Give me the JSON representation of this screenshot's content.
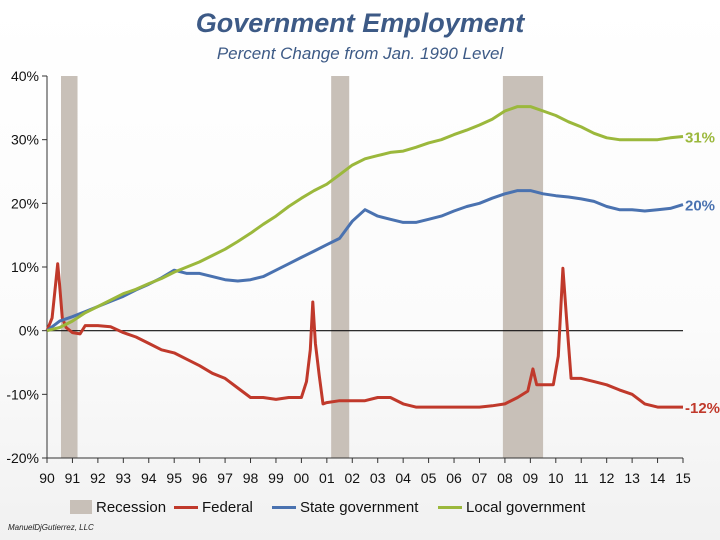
{
  "chart_data": {
    "type": "line",
    "title": "Government Employment",
    "subtitle": "Percent Change from Jan. 1990 Level",
    "xlabel": "",
    "ylabel": "",
    "x_ticks": [
      "90",
      "91",
      "92",
      "93",
      "94",
      "95",
      "96",
      "97",
      "98",
      "99",
      "00",
      "01",
      "02",
      "03",
      "04",
      "05",
      "06",
      "07",
      "08",
      "09",
      "10",
      "11",
      "12",
      "13",
      "14",
      "15"
    ],
    "xlim": [
      1990,
      2015
    ],
    "ylim": [
      -20,
      40
    ],
    "y_ticks": [
      "-20%",
      "-10%",
      "0%",
      "10%",
      "20%",
      "30%",
      "40%"
    ],
    "grid": false,
    "legend_position": "bottom",
    "recessions": [
      [
        1990.55,
        1991.2
      ],
      [
        2001.17,
        2001.88
      ],
      [
        2007.92,
        2009.5
      ]
    ],
    "series": [
      {
        "name": "Federal",
        "color": "#c0392b",
        "end_label": "-12%",
        "points": [
          [
            1990.0,
            0
          ],
          [
            1990.2,
            2
          ],
          [
            1990.33,
            7
          ],
          [
            1990.42,
            10.5
          ],
          [
            1990.5,
            7
          ],
          [
            1990.6,
            2
          ],
          [
            1990.75,
            0.5
          ],
          [
            1991.0,
            -0.3
          ],
          [
            1991.3,
            -0.5
          ],
          [
            1991.5,
            0.8
          ],
          [
            1992.0,
            0.8
          ],
          [
            1992.5,
            0.6
          ],
          [
            1993.0,
            -0.3
          ],
          [
            1993.5,
            -1
          ],
          [
            1994.0,
            -2
          ],
          [
            1994.5,
            -3
          ],
          [
            1995.0,
            -3.5
          ],
          [
            1995.5,
            -4.5
          ],
          [
            1996.0,
            -5.5
          ],
          [
            1996.5,
            -6.7
          ],
          [
            1997.0,
            -7.5
          ],
          [
            1997.5,
            -9
          ],
          [
            1998.0,
            -10.5
          ],
          [
            1998.5,
            -10.5
          ],
          [
            1999.0,
            -10.8
          ],
          [
            1999.5,
            -10.5
          ],
          [
            2000.0,
            -10.5
          ],
          [
            2000.2,
            -8
          ],
          [
            2000.35,
            -3
          ],
          [
            2000.45,
            4.5
          ],
          [
            2000.55,
            -2
          ],
          [
            2000.7,
            -7
          ],
          [
            2000.85,
            -11.5
          ],
          [
            2001.0,
            -11.3
          ],
          [
            2001.5,
            -11
          ],
          [
            2002.0,
            -11
          ],
          [
            2002.5,
            -11
          ],
          [
            2003.0,
            -10.5
          ],
          [
            2003.5,
            -10.5
          ],
          [
            2004.0,
            -11.5
          ],
          [
            2004.5,
            -12
          ],
          [
            2005.0,
            -12
          ],
          [
            2006.0,
            -12
          ],
          [
            2007.0,
            -12
          ],
          [
            2007.5,
            -11.8
          ],
          [
            2008.0,
            -11.5
          ],
          [
            2008.5,
            -10.5
          ],
          [
            2008.9,
            -9.5
          ],
          [
            2009.1,
            -6
          ],
          [
            2009.25,
            -8.5
          ],
          [
            2009.6,
            -8.5
          ],
          [
            2009.9,
            -8.5
          ],
          [
            2010.1,
            -4
          ],
          [
            2010.28,
            9.8
          ],
          [
            2010.42,
            2
          ],
          [
            2010.6,
            -7.5
          ],
          [
            2011.0,
            -7.5
          ],
          [
            2011.5,
            -8
          ],
          [
            2012.0,
            -8.5
          ],
          [
            2012.5,
            -9.3
          ],
          [
            2013.0,
            -10
          ],
          [
            2013.5,
            -11.5
          ],
          [
            2014.0,
            -12
          ],
          [
            2014.5,
            -12
          ],
          [
            2015.0,
            -12
          ]
        ]
      },
      {
        "name": "State government",
        "color": "#4a72b0",
        "end_label": "20%",
        "points": [
          [
            1990.0,
            0
          ],
          [
            1990.5,
            1.5
          ],
          [
            1991.0,
            2.2
          ],
          [
            1991.5,
            3
          ],
          [
            1992.0,
            3.8
          ],
          [
            1992.5,
            4.6
          ],
          [
            1993.0,
            5.4
          ],
          [
            1993.5,
            6.4
          ],
          [
            1994.0,
            7.3
          ],
          [
            1994.5,
            8.3
          ],
          [
            1995.0,
            9.5
          ],
          [
            1995.5,
            9
          ],
          [
            1996.0,
            9
          ],
          [
            1996.5,
            8.5
          ],
          [
            1997.0,
            8
          ],
          [
            1997.5,
            7.8
          ],
          [
            1998.0,
            8
          ],
          [
            1998.5,
            8.5
          ],
          [
            1999.0,
            9.5
          ],
          [
            1999.5,
            10.5
          ],
          [
            2000.0,
            11.5
          ],
          [
            2000.5,
            12.5
          ],
          [
            2001.0,
            13.5
          ],
          [
            2001.5,
            14.5
          ],
          [
            2002.0,
            17.2
          ],
          [
            2002.5,
            19
          ],
          [
            2003.0,
            18
          ],
          [
            2003.5,
            17.5
          ],
          [
            2004.0,
            17
          ],
          [
            2004.5,
            17
          ],
          [
            2005.0,
            17.5
          ],
          [
            2005.5,
            18
          ],
          [
            2006.0,
            18.8
          ],
          [
            2006.5,
            19.5
          ],
          [
            2007.0,
            20
          ],
          [
            2007.5,
            20.8
          ],
          [
            2008.0,
            21.5
          ],
          [
            2008.5,
            22
          ],
          [
            2009.0,
            22
          ],
          [
            2009.5,
            21.5
          ],
          [
            2010.0,
            21.2
          ],
          [
            2010.5,
            21
          ],
          [
            2011.0,
            20.7
          ],
          [
            2011.5,
            20.3
          ],
          [
            2012.0,
            19.5
          ],
          [
            2012.5,
            19
          ],
          [
            2013.0,
            19
          ],
          [
            2013.5,
            18.8
          ],
          [
            2014.0,
            19
          ],
          [
            2014.5,
            19.2
          ],
          [
            2015.0,
            19.8
          ]
        ]
      },
      {
        "name": "Local government",
        "color": "#9bb83c",
        "end_label": "31%",
        "points": [
          [
            1990.0,
            0
          ],
          [
            1990.5,
            0.5
          ],
          [
            1991.0,
            1.5
          ],
          [
            1991.5,
            2.8
          ],
          [
            1992.0,
            3.8
          ],
          [
            1992.5,
            4.8
          ],
          [
            1993.0,
            5.8
          ],
          [
            1993.5,
            6.5
          ],
          [
            1994.0,
            7.4
          ],
          [
            1994.5,
            8.2
          ],
          [
            1995.0,
            9.2
          ],
          [
            1995.5,
            10
          ],
          [
            1996.0,
            10.8
          ],
          [
            1996.5,
            11.8
          ],
          [
            1997.0,
            12.8
          ],
          [
            1997.5,
            14
          ],
          [
            1998.0,
            15.3
          ],
          [
            1998.5,
            16.7
          ],
          [
            1999.0,
            18
          ],
          [
            1999.5,
            19.5
          ],
          [
            2000.0,
            20.8
          ],
          [
            2000.5,
            22
          ],
          [
            2001.0,
            23
          ],
          [
            2001.5,
            24.5
          ],
          [
            2002.0,
            26
          ],
          [
            2002.5,
            27
          ],
          [
            2003.0,
            27.5
          ],
          [
            2003.5,
            28
          ],
          [
            2004.0,
            28.2
          ],
          [
            2004.5,
            28.8
          ],
          [
            2005.0,
            29.5
          ],
          [
            2005.5,
            30
          ],
          [
            2006.0,
            30.8
          ],
          [
            2006.5,
            31.5
          ],
          [
            2007.0,
            32.3
          ],
          [
            2007.5,
            33.2
          ],
          [
            2008.0,
            34.5
          ],
          [
            2008.5,
            35.2
          ],
          [
            2009.0,
            35.2
          ],
          [
            2009.5,
            34.5
          ],
          [
            2010.0,
            33.8
          ],
          [
            2010.5,
            32.8
          ],
          [
            2011.0,
            32
          ],
          [
            2011.5,
            31
          ],
          [
            2012.0,
            30.3
          ],
          [
            2012.5,
            30
          ],
          [
            2013.0,
            30
          ],
          [
            2013.5,
            30
          ],
          [
            2014.0,
            30
          ],
          [
            2014.5,
            30.3
          ],
          [
            2015.0,
            30.5
          ]
        ]
      }
    ],
    "legend": [
      {
        "label": "Recession",
        "color": "#c8c0b8",
        "kind": "box"
      },
      {
        "label": "Federal",
        "color": "#c0392b",
        "kind": "line"
      },
      {
        "label": "State government",
        "color": "#4a72b0",
        "kind": "line"
      },
      {
        "label": "Local government",
        "color": "#9bb83c",
        "kind": "line"
      }
    ]
  },
  "credit": "ManuelDjGutierrez, LLC"
}
